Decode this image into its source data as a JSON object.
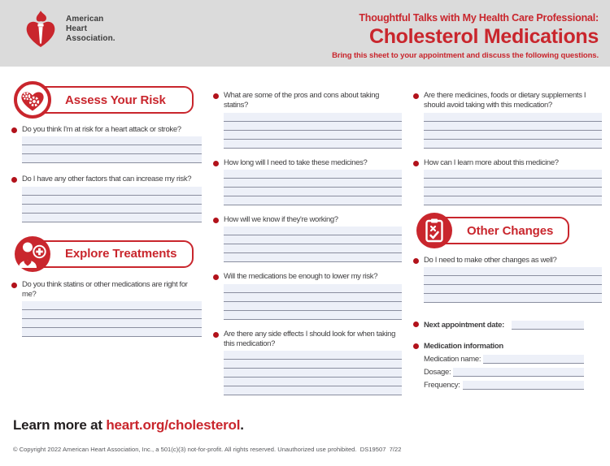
{
  "colors": {
    "accent_red": "#C9262D",
    "bullet_red": "#B2121B",
    "header_background": "#DBDBDB",
    "answer_line_fill": "#EDF0F8",
    "answer_line_rule": "#8A8E9F",
    "body_text": "#414042"
  },
  "header": {
    "logo_text": [
      "American",
      "Heart",
      "Association."
    ],
    "eyebrow": "Thoughtful Talks with My Health Care Professional:",
    "title": "Cholesterol Medications",
    "subtitle": "Bring this sheet to your appointment and discuss the following questions."
  },
  "columns": {
    "col1": {
      "section1": {
        "label": "Assess Your Risk",
        "icon": "heart-gears-icon"
      },
      "q1": {
        "text": "Do you think I'm at risk for a heart attack or stroke?",
        "lines": 3
      },
      "q2": {
        "text": "Do I have any other factors that can increase my risk?",
        "lines": 4
      },
      "section2": {
        "label": "Explore Treatments",
        "icon": "caregiver-plus-icon"
      },
      "q3": {
        "text": "Do you think statins or other medications are right for me?",
        "lines": 4
      }
    },
    "col2": {
      "q1": {
        "text": "What are some of the pros and cons about taking statins?",
        "lines": 4
      },
      "q2": {
        "text": "How long will I need to take these medicines?",
        "lines": 4
      },
      "q3": {
        "text": "How will we know if they're working?",
        "lines": 4
      },
      "q4": {
        "text": "Will the medications be enough to lower my risk?",
        "lines": 4
      },
      "q5": {
        "text": "Are there any side effects I should look for when taking this medication?",
        "lines": 5
      }
    },
    "col3": {
      "q1": {
        "text": "Are there medicines, foods or dietary supplements I should avoid taking with this medication?",
        "lines": 4
      },
      "q2": {
        "text": "How can I learn more about this medicine?",
        "lines": 4
      },
      "section": {
        "label": "Other Changes",
        "icon": "clipboard-check-icon"
      },
      "q3": {
        "text": "Do I need to make other changes as well?",
        "lines": 4
      },
      "appointment_label": "Next appointment date:",
      "medication_info_label": "Medication information",
      "med_fields": {
        "name": "Medication name:",
        "dosage": "Dosage:",
        "frequency": "Frequency:"
      }
    }
  },
  "footer": {
    "learn_more_prefix": "Learn more at ",
    "learn_more_link": "heart.org/cholesterol",
    "learn_more_suffix": ".",
    "copyright": "© Copyright 2022 American Heart Association, Inc., a 501(c)(3) not-for-profit. All rights reserved. Unauthorized use prohibited.  DS19507  7/22"
  }
}
